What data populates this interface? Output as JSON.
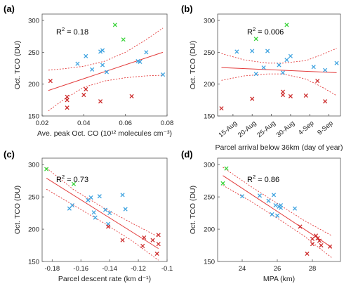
{
  "colors": {
    "blue": "#3fa3e0",
    "red": "#cc2a2a",
    "green": "#3bd43b",
    "fit": "#e33b3b",
    "axis": "#555555"
  },
  "chart_data": [
    {
      "type": "scatter",
      "panel_label": "(a)",
      "ylabel": "Oct. TCO (DU)",
      "xlabel": "Ave. peak Oct. CO (10¹² molecules cm⁻³)",
      "annotation": {
        "prefix": "R",
        "sup": "2",
        "suffix": " = 0.18"
      },
      "xlim": [
        0.02,
        0.08
      ],
      "ylim": [
        150,
        310
      ],
      "xticks": [
        0.02,
        0.04,
        0.06,
        0.08
      ],
      "xtick_labels": [
        "0.02",
        "0.04",
        "0.06",
        "0.08"
      ],
      "yticks": [
        150,
        200,
        250,
        300
      ],
      "ytick_labels": [
        "150",
        "200",
        "250",
        "300"
      ],
      "grid": false,
      "fit": {
        "x": [
          0.023,
          0.078
        ],
        "y": [
          190,
          250
        ]
      },
      "band_upper": {
        "x": [
          0.023,
          0.03,
          0.04,
          0.05,
          0.06,
          0.07,
          0.078
        ],
        "y": [
          222,
          224,
          228,
          236,
          250,
          270,
          288
        ]
      },
      "band_lower": {
        "x": [
          0.023,
          0.03,
          0.04,
          0.05,
          0.06,
          0.07,
          0.078
        ],
        "y": [
          158,
          175,
          195,
          205,
          210,
          213,
          214
        ]
      },
      "series": [
        {
          "color": "blue",
          "points": [
            [
              0.037,
              232
            ],
            [
              0.041,
              244
            ],
            [
              0.044,
              223
            ],
            [
              0.048,
              251
            ],
            [
              0.049,
              253
            ],
            [
              0.049,
              230
            ],
            [
              0.051,
              219
            ],
            [
              0.066,
              236
            ],
            [
              0.067,
              235
            ],
            [
              0.07,
              250
            ],
            [
              0.078,
              215
            ]
          ]
        },
        {
          "color": "red",
          "points": [
            [
              0.024,
              205
            ],
            [
              0.032,
              180
            ],
            [
              0.032,
              175
            ],
            [
              0.032,
              163
            ],
            [
              0.04,
              183
            ],
            [
              0.041,
              192
            ],
            [
              0.048,
              173
            ],
            [
              0.063,
              181
            ]
          ]
        },
        {
          "color": "green",
          "points": [
            [
              0.055,
              293
            ],
            [
              0.059,
              270
            ]
          ]
        }
      ]
    },
    {
      "type": "scatter",
      "panel_label": "(b)",
      "ylabel": "Oct. TCO (DU)",
      "xlabel": "Parcel arrival below 36km (day of year)",
      "annotation": {
        "prefix": "R",
        "sup": "2",
        "suffix": " = 0.006"
      },
      "xlim": [
        223,
        255
      ],
      "ylim": [
        150,
        310
      ],
      "xticks": [
        227,
        232,
        237,
        242,
        247,
        252
      ],
      "xtick_labels": [
        "15-Aug",
        "20-Aug",
        "25-Aug",
        "30-Aug",
        "4-Sep",
        "9-Sep"
      ],
      "yticks": [
        150,
        200,
        250,
        300
      ],
      "ytick_labels": [
        "150",
        "200",
        "250",
        "300"
      ],
      "grid": false,
      "fit": {
        "x": [
          224,
          254
        ],
        "y": [
          226,
          218
        ]
      },
      "band_upper": {
        "x": [
          224,
          230,
          236,
          240,
          246,
          250,
          254
        ],
        "y": [
          248,
          238,
          233,
          233,
          237,
          246,
          256
        ]
      },
      "band_lower": {
        "x": [
          224,
          230,
          236,
          240,
          246,
          250,
          254
        ],
        "y": [
          206,
          213,
          216,
          216,
          208,
          196,
          182
        ]
      },
      "series": [
        {
          "color": "blue",
          "points": [
            [
              228,
              251
            ],
            [
              232,
              252
            ],
            [
              233,
              216
            ],
            [
              235,
              226
            ],
            [
              236,
              252
            ],
            [
              239,
              230
            ],
            [
              240,
              218
            ],
            [
              241,
              238
            ],
            [
              242,
              244
            ],
            [
              248,
              227
            ],
            [
              251,
              222
            ],
            [
              254,
              233
            ]
          ]
        },
        {
          "color": "red",
          "points": [
            [
              224,
              162
            ],
            [
              232,
              177
            ],
            [
              240,
              188
            ],
            [
              240,
              183
            ],
            [
              242,
              181
            ],
            [
              246,
              182
            ],
            [
              249,
              205
            ],
            [
              251,
              173
            ]
          ]
        },
        {
          "color": "green",
          "points": [
            [
              233,
              271
            ],
            [
              241,
              293
            ]
          ]
        }
      ]
    },
    {
      "type": "scatter",
      "panel_label": "(c)",
      "ylabel": "Oct. TCO (DU)",
      "xlabel": "Parcel descent rate (km d⁻¹)",
      "annotation": {
        "prefix": "R",
        "sup": "2",
        "suffix": " = 0.73"
      },
      "xlim": [
        -0.187,
        -0.1
      ],
      "ylim": [
        150,
        310
      ],
      "xticks": [
        -0.18,
        -0.16,
        -0.14,
        -0.12,
        -0.1
      ],
      "xtick_labels": [
        "-0.18",
        "-0.16",
        "-0.14",
        "-0.12",
        "-0.1"
      ],
      "yticks": [
        150,
        200,
        250,
        300
      ],
      "ytick_labels": [
        "150",
        "200",
        "250",
        "300"
      ],
      "grid": false,
      "fit": {
        "x": [
          -0.184,
          -0.106
        ],
        "y": [
          279,
          170
        ]
      },
      "band_upper": {
        "x": [
          -0.184,
          -0.165,
          -0.145,
          -0.125,
          -0.106
        ],
        "y": [
          295,
          261,
          234,
          210,
          188
        ]
      },
      "band_lower": {
        "x": [
          -0.184,
          -0.165,
          -0.145,
          -0.125,
          -0.106
        ],
        "y": [
          262,
          237,
          211,
          183,
          152
        ]
      },
      "series": [
        {
          "color": "blue",
          "points": [
            [
              -0.168,
              232
            ],
            [
              -0.166,
              237
            ],
            [
              -0.155,
              245
            ],
            [
              -0.153,
              249
            ],
            [
              -0.151,
              226
            ],
            [
              -0.15,
              218
            ],
            [
              -0.147,
              251
            ],
            [
              -0.143,
              230
            ],
            [
              -0.141,
              208
            ],
            [
              -0.14,
              225
            ],
            [
              -0.131,
              253
            ],
            [
              -0.129,
              231
            ]
          ]
        },
        {
          "color": "red",
          "points": [
            [
              -0.131,
              183
            ],
            [
              -0.116,
              187
            ],
            [
              -0.117,
              174
            ],
            [
              -0.11,
              183
            ],
            [
              -0.106,
              191
            ],
            [
              -0.106,
              177
            ],
            [
              -0.107,
              162
            ],
            [
              -0.141,
              204
            ]
          ]
        },
        {
          "color": "green",
          "points": [
            [
              -0.184,
              293
            ],
            [
              -0.165,
              270
            ]
          ]
        }
      ]
    },
    {
      "type": "scatter",
      "panel_label": "(d)",
      "ylabel": "Oct. TCO (DU)",
      "xlabel": "MPA (km)",
      "annotation": {
        "prefix": "R",
        "sup": "2",
        "suffix": " = 0.86"
      },
      "xlim": [
        22.6,
        29.6
      ],
      "ylim": [
        150,
        310
      ],
      "xticks": [
        24,
        26,
        28
      ],
      "xtick_labels": [
        "24",
        "26",
        "28"
      ],
      "yticks": [
        150,
        200,
        250,
        300
      ],
      "ytick_labels": [
        "150",
        "200",
        "250",
        "300"
      ],
      "grid": false,
      "fit": {
        "x": [
          22.9,
          29.1
        ],
        "y": [
          283,
          172
        ]
      },
      "band_upper": {
        "x": [
          22.9,
          24.5,
          26,
          27.5,
          29.1
        ],
        "y": [
          296,
          266,
          240,
          214,
          190
        ]
      },
      "band_lower": {
        "x": [
          22.9,
          24.5,
          26,
          27.5,
          29.1
        ],
        "y": [
          268,
          243,
          217,
          190,
          156
        ]
      },
      "series": [
        {
          "color": "blue",
          "points": [
            [
              24.0,
              251
            ],
            [
              25.0,
              252
            ],
            [
              25.5,
              244
            ],
            [
              25.7,
              223
            ],
            [
              25.8,
              253
            ],
            [
              25.9,
              237
            ],
            [
              26.0,
              221
            ],
            [
              26.1,
              235
            ],
            [
              26.2,
              237
            ],
            [
              26.2,
              233
            ],
            [
              27.0,
              232
            ]
          ]
        },
        {
          "color": "red",
          "points": [
            [
              27.3,
              204
            ],
            [
              27.7,
              162
            ],
            [
              28.0,
              185
            ],
            [
              28.0,
              177
            ],
            [
              28.2,
              190
            ],
            [
              28.3,
              186
            ],
            [
              28.4,
              182
            ],
            [
              28.5,
              175
            ],
            [
              29.0,
              173
            ]
          ]
        },
        {
          "color": "green",
          "points": [
            [
              22.9,
              271
            ],
            [
              23.1,
              294
            ]
          ]
        }
      ]
    }
  ]
}
